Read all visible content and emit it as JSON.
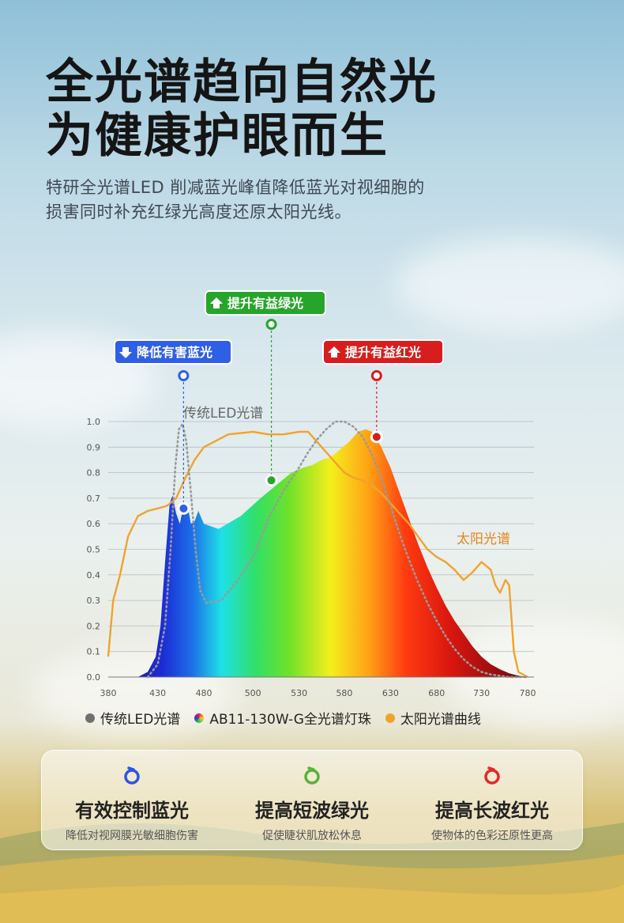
{
  "headline": {
    "line1": "全光谱趋向自然光",
    "line2": "为健康护眼而生"
  },
  "subtitle": {
    "line1": "特研全光谱LED 削减蓝光峰值降低蓝光对视细胞的",
    "line2": "损害同时补充红绿光高度还原太阳光线。"
  },
  "callouts": {
    "blue": {
      "text": "降低有害蓝光",
      "color": "#2f5fe6",
      "x": 458,
      "y": 0.66
    },
    "green": {
      "text": "提升有益绿光",
      "color": "#27a52b",
      "x": 512,
      "y": 0.77
    },
    "red": {
      "text": "提升有益红光",
      "color": "#d81d1d",
      "x": 615,
      "y": 0.94
    }
  },
  "chart_data": {
    "type": "area",
    "xlim": [
      380,
      780
    ],
    "ylim": [
      0,
      1.0
    ],
    "x_ticks": [
      380,
      430,
      480,
      500,
      530,
      580,
      630,
      680,
      730,
      780
    ],
    "y_ticks": [
      "0.0",
      "0.1",
      "0.2",
      "0.3",
      "0.4",
      "0.5",
      "0.6",
      "0.7",
      "0.8",
      "0.9",
      "1.0"
    ],
    "grid": true,
    "series_labels": {
      "led": "传统LED光谱",
      "sun": "太阳光谱"
    },
    "series": [
      {
        "name": "AB11-130W-G全光谱灯珠",
        "style": "filled-rainbow",
        "points": [
          [
            380,
            0
          ],
          [
            410,
            0
          ],
          [
            420,
            0.02
          ],
          [
            428,
            0.08
          ],
          [
            433,
            0.2
          ],
          [
            438,
            0.45
          ],
          [
            443,
            0.68
          ],
          [
            446,
            0.71
          ],
          [
            450,
            0.64
          ],
          [
            454,
            0.6
          ],
          [
            458,
            0.67
          ],
          [
            462,
            0.68
          ],
          [
            466,
            0.6
          ],
          [
            470,
            0.61
          ],
          [
            474,
            0.65
          ],
          [
            480,
            0.6
          ],
          [
            486,
            0.58
          ],
          [
            495,
            0.63
          ],
          [
            505,
            0.7
          ],
          [
            515,
            0.75
          ],
          [
            525,
            0.8
          ],
          [
            535,
            0.82
          ],
          [
            545,
            0.83
          ],
          [
            555,
            0.85
          ],
          [
            565,
            0.86
          ],
          [
            575,
            0.89
          ],
          [
            585,
            0.92
          ],
          [
            595,
            0.96
          ],
          [
            603,
            0.97
          ],
          [
            610,
            0.96
          ],
          [
            620,
            0.9
          ],
          [
            630,
            0.82
          ],
          [
            640,
            0.72
          ],
          [
            650,
            0.62
          ],
          [
            660,
            0.52
          ],
          [
            670,
            0.43
          ],
          [
            680,
            0.35
          ],
          [
            690,
            0.28
          ],
          [
            700,
            0.22
          ],
          [
            710,
            0.17
          ],
          [
            720,
            0.12
          ],
          [
            730,
            0.08
          ],
          [
            740,
            0.05
          ],
          [
            750,
            0.03
          ],
          [
            760,
            0.015
          ],
          [
            770,
            0.005
          ],
          [
            780,
            0
          ]
        ]
      },
      {
        "name": "太阳光谱曲线",
        "color": "#f0a32c",
        "points": [
          [
            380,
            0.08
          ],
          [
            385,
            0.3
          ],
          [
            392,
            0.4
          ],
          [
            400,
            0.55
          ],
          [
            410,
            0.63
          ],
          [
            420,
            0.65
          ],
          [
            430,
            0.66
          ],
          [
            440,
            0.67
          ],
          [
            450,
            0.7
          ],
          [
            460,
            0.78
          ],
          [
            470,
            0.85
          ],
          [
            480,
            0.9
          ],
          [
            490,
            0.95
          ],
          [
            500,
            0.96
          ],
          [
            510,
            0.95
          ],
          [
            520,
            0.95
          ],
          [
            530,
            0.96
          ],
          [
            540,
            0.96
          ],
          [
            550,
            0.92
          ],
          [
            560,
            0.88
          ],
          [
            570,
            0.84
          ],
          [
            580,
            0.8
          ],
          [
            590,
            0.78
          ],
          [
            600,
            0.77
          ],
          [
            610,
            0.75
          ],
          [
            620,
            0.72
          ],
          [
            630,
            0.68
          ],
          [
            640,
            0.64
          ],
          [
            650,
            0.6
          ],
          [
            660,
            0.55
          ],
          [
            670,
            0.5
          ],
          [
            680,
            0.47
          ],
          [
            690,
            0.45
          ],
          [
            700,
            0.42
          ],
          [
            710,
            0.38
          ],
          [
            720,
            0.41
          ],
          [
            730,
            0.45
          ],
          [
            740,
            0.42
          ],
          [
            745,
            0.36
          ],
          [
            750,
            0.33
          ],
          [
            756,
            0.38
          ],
          [
            760,
            0.36
          ],
          [
            765,
            0.1
          ],
          [
            770,
            0.02
          ],
          [
            780,
            0
          ]
        ]
      },
      {
        "name": "传统LED光谱",
        "color": "#9a9a9a",
        "style": "dotted",
        "points": [
          [
            420,
            0
          ],
          [
            430,
            0.05
          ],
          [
            438,
            0.2
          ],
          [
            444,
            0.5
          ],
          [
            449,
            0.82
          ],
          [
            453,
            0.97
          ],
          [
            457,
            0.99
          ],
          [
            461,
            0.92
          ],
          [
            466,
            0.72
          ],
          [
            471,
            0.5
          ],
          [
            476,
            0.34
          ],
          [
            481,
            0.29
          ],
          [
            487,
            0.3
          ],
          [
            494,
            0.38
          ],
          [
            501,
            0.48
          ],
          [
            510,
            0.62
          ],
          [
            520,
            0.73
          ],
          [
            530,
            0.82
          ],
          [
            540,
            0.88
          ],
          [
            550,
            0.93
          ],
          [
            560,
            0.97
          ],
          [
            570,
            1.0
          ],
          [
            580,
            1.0
          ],
          [
            590,
            0.98
          ],
          [
            600,
            0.94
          ],
          [
            610,
            0.87
          ],
          [
            620,
            0.78
          ],
          [
            630,
            0.67
          ],
          [
            640,
            0.56
          ],
          [
            650,
            0.46
          ],
          [
            660,
            0.37
          ],
          [
            670,
            0.29
          ],
          [
            680,
            0.22
          ],
          [
            690,
            0.16
          ],
          [
            700,
            0.11
          ],
          [
            710,
            0.07
          ],
          [
            720,
            0.04
          ],
          [
            730,
            0.02
          ],
          [
            740,
            0.01
          ],
          [
            760,
            0
          ],
          [
            780,
            0
          ]
        ]
      }
    ]
  },
  "legend": {
    "items": [
      {
        "label": "传统LED光谱",
        "color": "#707070"
      },
      {
        "label": "AB11-130W-G全光谱灯珠",
        "color": "rainbow"
      },
      {
        "label": "太阳光谱曲线",
        "color": "#f0a32c"
      }
    ]
  },
  "features": [
    {
      "title": "有效控制蓝光",
      "desc": "降低对视网膜光敏细胞伤害",
      "color": "#2d55e0",
      "icon": "swirl-icon"
    },
    {
      "title": "提高短波绿光",
      "desc": "促使睫状肌放松休息",
      "color": "#58b236",
      "icon": "swirl-icon"
    },
    {
      "title": "提高长波红光",
      "desc": "使物体的色彩还原性更高",
      "color": "#e02a2a",
      "icon": "swirl-icon"
    }
  ]
}
